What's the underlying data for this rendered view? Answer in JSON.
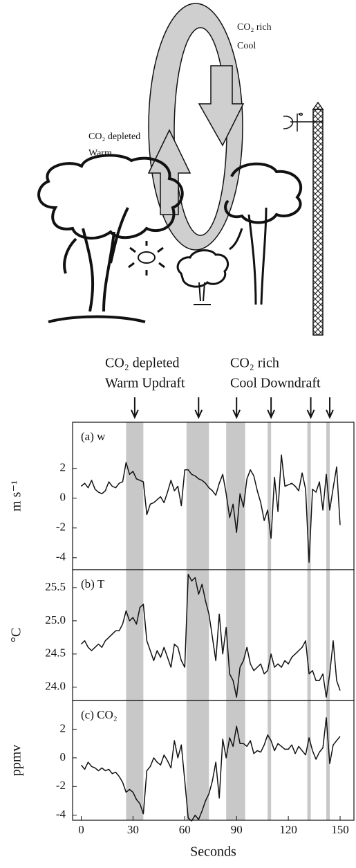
{
  "illustration": {
    "rich_label": [
      "CO₂ rich",
      "Cool"
    ],
    "depleted_label": [
      "CO₂ depleted",
      "Warm"
    ]
  },
  "annotations": {
    "updraft": [
      "CO₂ depleted",
      "Warm Updraft"
    ],
    "downdraft": [
      "CO₂ rich",
      "Cool Downdraft"
    ],
    "arrow_x": [
      31,
      68,
      90,
      110,
      133,
      144
    ]
  },
  "shading": {
    "intervals": [
      [
        26,
        36
      ],
      [
        61,
        74
      ],
      [
        84,
        95
      ],
      [
        108,
        110
      ],
      [
        131,
        133
      ],
      [
        142,
        144
      ]
    ],
    "color": "#c8c8c8"
  },
  "chart_data": [
    {
      "type": "line",
      "panel_label": "(a) w",
      "ylabel": "m s⁻¹",
      "color": "#111111",
      "xlim": [
        -5,
        158
      ],
      "ylim": [
        -4.8,
        5.1
      ],
      "yticks": [
        -4,
        -2,
        0,
        2
      ],
      "x": [
        0,
        2,
        4,
        6,
        8,
        10,
        12,
        14,
        16,
        18,
        20,
        22,
        24,
        26,
        28,
        30,
        32,
        34,
        36,
        38,
        40,
        42,
        44,
        46,
        48,
        50,
        52,
        54,
        56,
        58,
        60,
        62,
        64,
        66,
        68,
        70,
        72,
        74,
        76,
        78,
        80,
        82,
        84,
        86,
        88,
        90,
        92,
        94,
        96,
        98,
        100,
        102,
        104,
        106,
        108,
        110,
        112,
        114,
        116,
        118,
        120,
        122,
        124,
        126,
        128,
        130,
        132,
        134,
        136,
        138,
        140,
        142,
        144,
        146,
        148,
        150
      ],
      "values": [
        0.8,
        1.0,
        0.7,
        1.2,
        0.6,
        0.4,
        0.3,
        0.5,
        1.1,
        0.8,
        0.7,
        1.0,
        1.1,
        2.4,
        1.6,
        1.8,
        1.3,
        1.2,
        1.1,
        -1.1,
        -0.4,
        -0.3,
        -0.1,
        0.1,
        -0.3,
        0.4,
        1.2,
        0.5,
        0.8,
        -0.5,
        1.9,
        1.9,
        1.6,
        1.5,
        1.3,
        1.2,
        1.0,
        0.7,
        0.5,
        0.2,
        1.0,
        1.6,
        0.3,
        -1.3,
        -0.4,
        -2.3,
        0.3,
        -0.6,
        1.3,
        1.9,
        1.5,
        0.5,
        -0.3,
        -1.5,
        -0.8,
        -2.7,
        1.4,
        -0.9,
        2.9,
        0.8,
        0.9,
        1.0,
        0.8,
        0.5,
        1.7,
        0.6,
        -4.3,
        0.6,
        0.4,
        1.1,
        -0.8,
        1.6,
        -0.8,
        0.7,
        2.1,
        -1.8
      ]
    },
    {
      "type": "line",
      "panel_label": "(b) T",
      "ylabel": "°C",
      "color": "#111111",
      "xlim": [
        -5,
        158
      ],
      "ylim": [
        23.8,
        25.77
      ],
      "yticks": [
        {
          "value": 24,
          "label": "24.0"
        },
        24.5,
        {
          "value": 25,
          "label": "25.0"
        },
        25.5
      ],
      "x": [
        0,
        2,
        4,
        6,
        8,
        10,
        12,
        14,
        16,
        18,
        20,
        22,
        24,
        26,
        28,
        30,
        32,
        34,
        36,
        38,
        40,
        42,
        44,
        46,
        48,
        50,
        52,
        54,
        56,
        58,
        60,
        62,
        64,
        66,
        68,
        70,
        72,
        74,
        76,
        78,
        80,
        82,
        84,
        86,
        88,
        90,
        92,
        94,
        96,
        98,
        100,
        102,
        104,
        106,
        108,
        110,
        112,
        114,
        116,
        118,
        120,
        122,
        124,
        126,
        128,
        130,
        132,
        134,
        136,
        138,
        140,
        142,
        144,
        146,
        148,
        150
      ],
      "values": [
        24.65,
        24.7,
        24.6,
        24.55,
        24.6,
        24.65,
        24.6,
        24.7,
        24.75,
        24.8,
        24.85,
        24.85,
        24.95,
        25.15,
        25.0,
        25.05,
        24.95,
        25.2,
        25.25,
        24.7,
        24.55,
        24.4,
        24.55,
        24.45,
        24.6,
        24.45,
        24.3,
        24.65,
        24.6,
        24.4,
        24.3,
        25.7,
        25.6,
        25.65,
        25.4,
        25.55,
        25.3,
        25.1,
        24.75,
        24.4,
        25.1,
        24.5,
        24.9,
        24.2,
        24.1,
        23.85,
        24.3,
        24.4,
        24.6,
        24.35,
        24.25,
        24.3,
        24.35,
        24.2,
        24.25,
        24.5,
        24.3,
        24.35,
        24.3,
        24.4,
        24.35,
        24.45,
        24.5,
        24.55,
        24.6,
        24.7,
        24.2,
        24.25,
        24.1,
        24.1,
        24.2,
        23.85,
        24.2,
        24.7,
        24.1,
        23.95
      ]
    },
    {
      "type": "line",
      "panel_label": "(c) CO₂",
      "ylabel": "ppmv",
      "color": "#111111",
      "xlabel": "Seconds",
      "xlim": [
        -5,
        158
      ],
      "xticks": [
        0,
        30,
        60,
        90,
        120,
        150
      ],
      "ylim": [
        -4.35,
        4.0
      ],
      "yticks": [
        -4,
        -2,
        0,
        2
      ],
      "x": [
        0,
        2,
        4,
        6,
        8,
        10,
        12,
        14,
        16,
        18,
        20,
        22,
        24,
        26,
        28,
        30,
        32,
        34,
        36,
        38,
        40,
        42,
        44,
        46,
        48,
        50,
        52,
        54,
        56,
        58,
        60,
        62,
        64,
        66,
        68,
        70,
        72,
        74,
        76,
        78,
        80,
        82,
        84,
        86,
        88,
        90,
        92,
        94,
        96,
        98,
        100,
        102,
        104,
        106,
        108,
        110,
        112,
        114,
        116,
        118,
        120,
        122,
        124,
        126,
        128,
        130,
        132,
        134,
        136,
        138,
        140,
        142,
        144,
        146,
        148,
        150
      ],
      "values": [
        -0.5,
        -0.8,
        -0.3,
        -0.6,
        -0.7,
        -0.9,
        -0.7,
        -0.9,
        -0.8,
        -1.1,
        -1.0,
        -1.3,
        -1.7,
        -2.4,
        -2.2,
        -2.4,
        -2.9,
        -3.2,
        -3.9,
        -0.9,
        -0.6,
        0.0,
        -0.3,
        -0.5,
        0.2,
        -0.2,
        -0.7,
        1.2,
        0.0,
        0.9,
        -1.6,
        -4.2,
        -4.4,
        -4.0,
        -4.3,
        -3.7,
        -3.0,
        -2.5,
        -1.6,
        -0.3,
        -2.8,
        1.3,
        0.0,
        1.4,
        0.8,
        2.2,
        1.0,
        1.0,
        0.8,
        1.2,
        0.3,
        0.5,
        0.4,
        0.9,
        1.6,
        1.2,
        0.5,
        1.0,
        0.8,
        0.6,
        0.6,
        0.9,
        0.3,
        0.8,
        0.5,
        0.2,
        1.4,
        0.5,
        -0.1,
        0.4,
        0.7,
        2.8,
        -0.4,
        0.9,
        1.2,
        1.5
      ]
    }
  ]
}
